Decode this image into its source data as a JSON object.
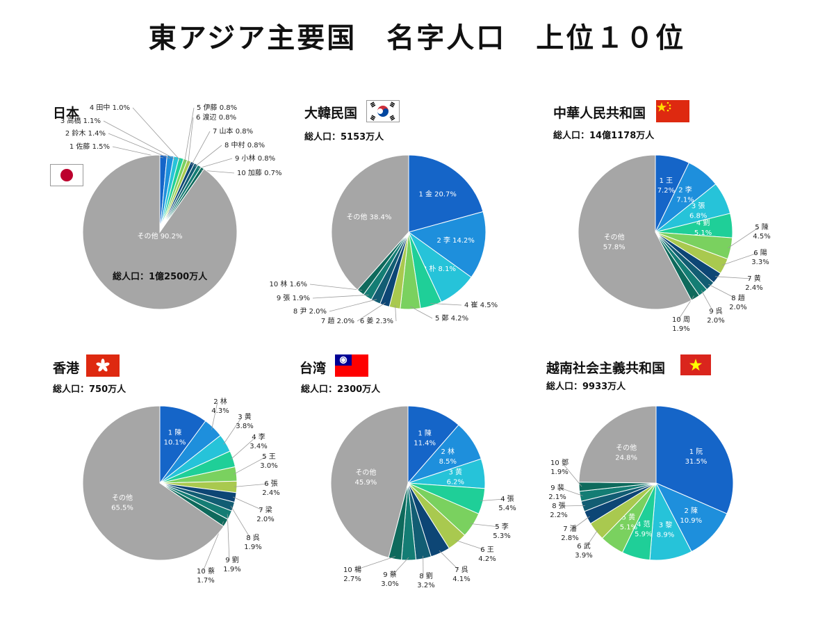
{
  "title": "東アジア主要国　名字人口　上位１０位",
  "colors": [
    "#1565c8",
    "#1e8fdc",
    "#26c3d9",
    "#1fcf98",
    "#7ad15f",
    "#a9c94f",
    "#0d4675",
    "#125d73",
    "#147d74",
    "#0e6a5c"
  ],
  "other_color": "#a6a6a6",
  "chart_data": [
    {
      "type": "pie",
      "id": "japan",
      "country": "日本",
      "total_population": "総人口：1億2500万人",
      "flag": "jp-flag",
      "categories": [
        "1 佐藤",
        "2 鈴木",
        "3 高橋",
        "4 田中",
        "5 伊藤",
        "6 渡辺",
        "7 山本",
        "8 中村",
        "9 小林",
        "10 加藤",
        "その他"
      ],
      "values": [
        1.5,
        1.4,
        1.1,
        1.0,
        0.8,
        0.8,
        0.8,
        0.8,
        0.8,
        0.7,
        90.2
      ],
      "labels": [
        "1 佐藤 1.5%",
        "2 鈴木 1.4%",
        "3 高橋 1.1%",
        "4 田中 1.0%",
        "5 伊藤 0.8%",
        "6 渡辺 0.8%",
        "7 山本 0.8%",
        "8 中村 0.8%",
        "9 小林 0.8%",
        "10 加藤 0.7%",
        "その他 90.2%"
      ]
    },
    {
      "type": "pie",
      "id": "korea",
      "country": "大韓民国",
      "total_population": "総人口：5153万人",
      "flag": "kr-flag",
      "categories": [
        "1 金",
        "2 李",
        "3 朴",
        "4 崔",
        "5 鄭",
        "6 姜",
        "7 趙",
        "8 尹",
        "9 張",
        "10 林",
        "その他"
      ],
      "values": [
        20.7,
        14.2,
        8.1,
        4.5,
        4.2,
        2.3,
        2.0,
        2.0,
        1.9,
        1.6,
        38.4
      ],
      "labels": [
        "1 金 20.7%",
        "2 李 14.2%",
        "3 朴 8.1%",
        "4 崔 4.5%",
        "5 鄭 4.2%",
        "6 姜 2.3%",
        "7 趙 2.0%",
        "8 尹 2.0%",
        "9 張 1.9%",
        "10 林 1.6%",
        "その他 38.4%"
      ]
    },
    {
      "type": "pie",
      "id": "china",
      "country": "中華人民共和国",
      "total_population": "総人口：14億1178万人",
      "flag": "cn-flag",
      "categories": [
        "1 王",
        "2 李",
        "3 張",
        "4 劉",
        "5 陳",
        "6 陽",
        "7 黄",
        "8 趙",
        "9 呉",
        "10 周",
        "その他"
      ],
      "values": [
        7.2,
        7.1,
        6.8,
        5.1,
        4.5,
        3.3,
        2.4,
        2.0,
        2.0,
        1.9,
        57.8
      ],
      "labels": [
        "1 王 7.2%",
        "2 李 7.1%",
        "3 張 6.8%",
        "4 劉 5.1%",
        "5 陳 4.5%",
        "6 陽 3.3%",
        "7 黄 2.4%",
        "8 趙 2.0%",
        "9 呉 2.0%",
        "10 周 1.9%",
        "その他 57.8%"
      ]
    },
    {
      "type": "pie",
      "id": "hongkong",
      "country": "香港",
      "total_population": "総人口：750万人",
      "flag": "hk-flag",
      "categories": [
        "1 陳",
        "2 林",
        "3 黄",
        "4 李",
        "5 王",
        "6 張",
        "7 梁",
        "8 呉",
        "9 劉",
        "10 蔡",
        "その他"
      ],
      "values": [
        10.1,
        4.3,
        3.8,
        3.4,
        3.0,
        2.4,
        2.0,
        1.9,
        1.9,
        1.7,
        65.5
      ],
      "labels": [
        "1 陳 10.1%",
        "2 林 4.3%",
        "3 黄 3.8%",
        "4 李 3.4%",
        "5 王 3.0%",
        "6 張 2.4%",
        "7 梁 2.0%",
        "8 呉 1.9%",
        "9 劉 1.9%",
        "10 蔡 1.7%",
        "その他 65.5%"
      ]
    },
    {
      "type": "pie",
      "id": "taiwan",
      "country": "台湾",
      "total_population": "総人口：2300万人",
      "flag": "tw-flag",
      "categories": [
        "1 陳",
        "2 林",
        "3 黄",
        "4 張",
        "5 李",
        "6 王",
        "7 呉",
        "8 劉",
        "9 蔡",
        "10 楊",
        "その他"
      ],
      "values": [
        11.4,
        8.5,
        6.2,
        5.4,
        5.3,
        4.2,
        4.1,
        3.2,
        3.0,
        2.7,
        45.9
      ],
      "labels": [
        "1 陳 11.4%",
        "2 林 8.5%",
        "3 黄 6.2%",
        "4 張 5.4%",
        "5 李 5.3%",
        "6 王 4.2%",
        "7 呉 4.1%",
        "8 劉 3.2%",
        "9 蔡 3.0%",
        "10 楊 2.7%",
        "その他 45.9%"
      ]
    },
    {
      "type": "pie",
      "id": "vietnam",
      "country": "越南社会主義共和国",
      "total_population": "総人口：9933万人",
      "flag": "vn-flag",
      "categories": [
        "1 阮",
        "2 陳",
        "3 黎",
        "4 范",
        "5 黄",
        "6 武",
        "7 潘",
        "8 張",
        "9 裴",
        "10 鄧",
        "その他"
      ],
      "values": [
        31.5,
        10.9,
        8.9,
        5.9,
        5.1,
        3.9,
        2.8,
        2.2,
        2.1,
        1.9,
        24.8
      ],
      "labels": [
        "1 阮 31.5%",
        "2 陳 10.9%",
        "3 黎 8.9%",
        "4 范 5.9%",
        "5 黄 5.1%",
        "6 武 3.9%",
        "7 潘 2.8%",
        "8 張 2.2%",
        "9 裴 2.1%",
        "10 鄧 1.9%",
        "その他 24.8%"
      ]
    }
  ]
}
